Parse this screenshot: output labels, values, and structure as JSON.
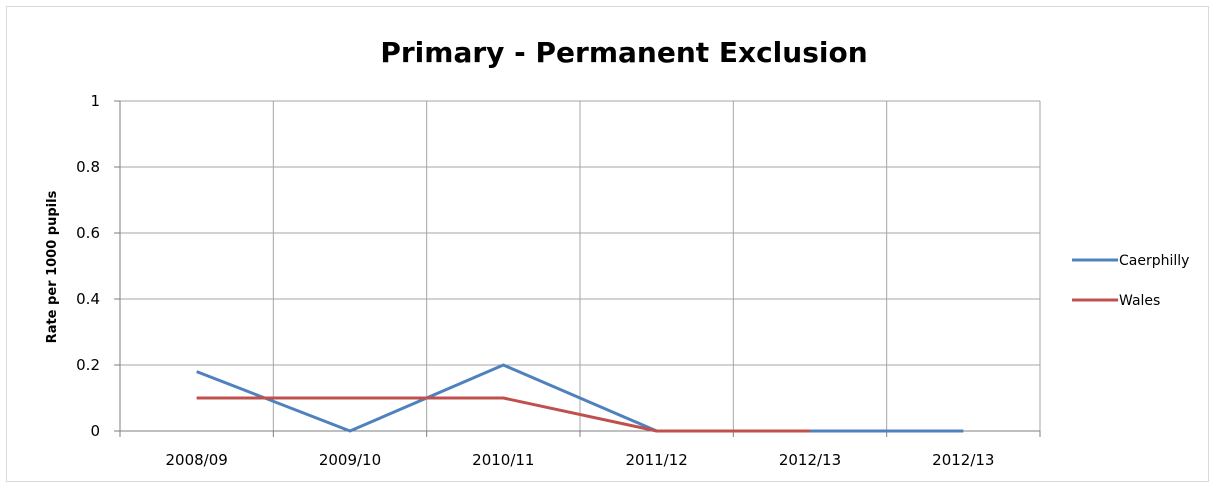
{
  "chart_data": {
    "type": "line",
    "title": "Primary - Permanent Exclusion",
    "xlabel": "",
    "ylabel": "Rate per 1000 pupils",
    "categories": [
      "2008/09",
      "2009/10",
      "2010/11",
      "2011/12",
      "2012/13",
      "2012/13"
    ],
    "ylim": [
      0,
      1
    ],
    "yticks": [
      "0",
      "0.2",
      "0.4",
      "0.6",
      "0.8",
      "1"
    ],
    "grid": true,
    "legend_position": "right",
    "series": [
      {
        "name": "Caerphilly",
        "color": "#4f81bd",
        "values": [
          0.18,
          0.0,
          0.2,
          0.0,
          0.0,
          0.0
        ]
      },
      {
        "name": "Wales",
        "color": "#c0504d",
        "values": [
          0.1,
          0.1,
          0.1,
          0.0,
          0.0,
          null
        ]
      }
    ]
  }
}
